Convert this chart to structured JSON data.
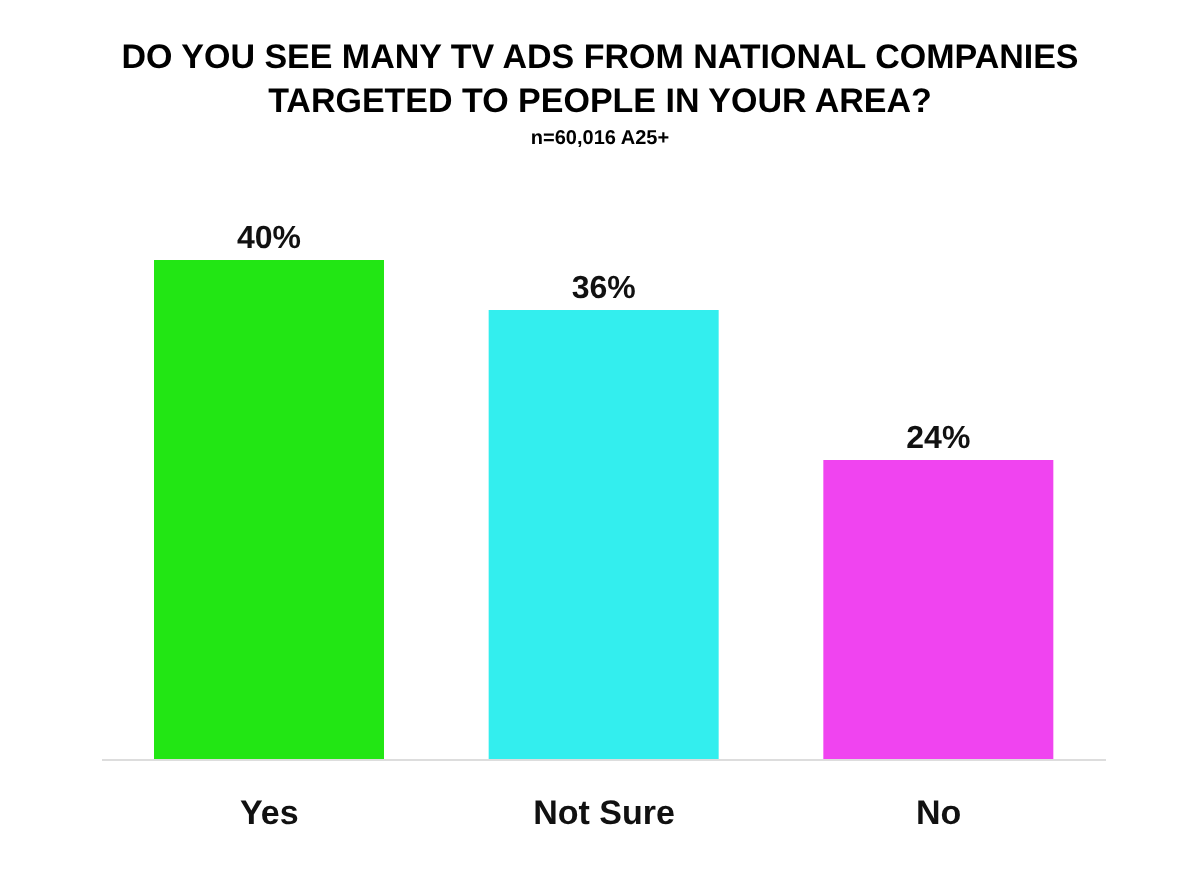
{
  "chart_data": {
    "type": "bar",
    "title": "DO YOU SEE MANY TV ADS FROM NATIONAL COMPANIES TARGETED TO PEOPLE IN YOUR AREA?",
    "subtitle": "n=60,016 A25+",
    "categories": [
      "Yes",
      "Not Sure",
      "No"
    ],
    "values": [
      40,
      36,
      24
    ],
    "colors": [
      "#22e614",
      "#33eeee",
      "#f044f0"
    ],
    "value_labels": [
      "40%",
      "36%",
      "24%"
    ]
  }
}
